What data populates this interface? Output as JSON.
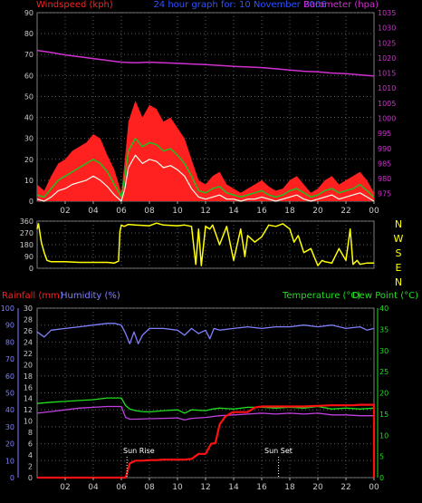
{
  "header": {
    "windspeed_label": "Windspeed (kph)",
    "title": "24 hour graph for: 10 November 2006",
    "barometer_label": "Barometer (hpa)"
  },
  "panel3_header": {
    "rainfall_label": "Rainfall (mm)",
    "humidity_label": "Humidity (%)",
    "temperature_label": "Temperature (°C)",
    "dewpoint_label": "Dew Point (°C)"
  },
  "annotations": {
    "sunrise": "Sun Rise",
    "sunset": "Sun Set"
  },
  "colors": {
    "background": "#000000",
    "grid": "#5a5a5a",
    "windspeed": "#ff2020",
    "barometer": "#d030d0",
    "title": "#3050ff",
    "gust": "#ff2020",
    "avg_wind": "#20c020",
    "min_wind": "#f0fff0",
    "direction": "#ffff00",
    "rainfall": "#ff1010",
    "humidity": "#8080ff",
    "temperature": "#20e020",
    "dewpoint": "#c040e0",
    "tick_text": "#cccccc",
    "temp_axis": "#20e020"
  },
  "chart_data": [
    {
      "type": "line",
      "title": "24 hour graph for: 10 November 2006",
      "x_ticks": [
        "02",
        "04",
        "06",
        "08",
        "10",
        "12",
        "14",
        "16",
        "18",
        "20",
        "22",
        "00"
      ],
      "xlim": [
        0,
        24
      ],
      "y_left": {
        "label": "Windspeed (kph)",
        "ylim": [
          0,
          90
        ],
        "ticks": [
          0,
          10,
          20,
          30,
          40,
          50,
          60,
          70,
          80,
          90
        ]
      },
      "y_right": {
        "label": "Barometer (hpa)",
        "ylim": [
          972.5,
          1035
        ],
        "ticks": [
          975,
          980,
          985,
          990,
          995,
          1000,
          1005,
          1010,
          1015,
          1020,
          1025,
          1030,
          1035
        ]
      },
      "grid": true,
      "series": [
        {
          "axis": "left",
          "x": [
            0,
            0.5,
            1,
            1.5,
            2,
            2.5,
            3,
            3.5,
            4,
            4.5,
            5,
            5.5,
            6,
            6.25,
            6.5,
            7,
            7.5,
            8,
            8.5,
            9,
            9.5,
            10,
            10.5,
            11,
            11.5,
            12,
            12.5,
            13,
            13.5,
            14,
            14.5,
            15,
            15.5,
            16,
            16.5,
            17,
            17.5,
            18,
            18.5,
            19,
            19.5,
            20,
            20.5,
            21,
            21.5,
            22,
            22.5,
            23,
            23.5,
            24
          ],
          "values": [
            8,
            5,
            12,
            18,
            20,
            24,
            26,
            28,
            32,
            30,
            22,
            15,
            4,
            20,
            38,
            48,
            40,
            46,
            44,
            38,
            40,
            35,
            30,
            20,
            10,
            8,
            12,
            14,
            8,
            6,
            4,
            6,
            8,
            10,
            7,
            5,
            6,
            10,
            12,
            8,
            4,
            6,
            10,
            12,
            8,
            10,
            12,
            14,
            10,
            4
          ]
        },
        {
          "axis": "left",
          "x": [
            0,
            0.5,
            1,
            1.5,
            2,
            2.5,
            3,
            3.5,
            4,
            4.5,
            5,
            5.5,
            6,
            6.25,
            6.5,
            7,
            7.5,
            8,
            8.5,
            9,
            9.5,
            10,
            10.5,
            11,
            11.5,
            12,
            12.5,
            13,
            13.5,
            14,
            14.5,
            15,
            15.5,
            16,
            16.5,
            17,
            17.5,
            18,
            18.5,
            19,
            19.5,
            20,
            20.5,
            21,
            21.5,
            22,
            22.5,
            23,
            23.5,
            24
          ],
          "values": [
            3,
            2,
            6,
            10,
            12,
            14,
            16,
            18,
            20,
            18,
            14,
            8,
            2,
            12,
            24,
            30,
            26,
            28,
            27,
            24,
            25,
            22,
            18,
            12,
            5,
            4,
            6,
            7,
            4,
            3,
            2,
            3,
            4,
            5,
            3,
            2,
            3,
            5,
            6,
            4,
            2,
            3,
            5,
            6,
            4,
            5,
            6,
            8,
            5,
            2
          ]
        },
        {
          "axis": "left",
          "x": [
            0,
            0.5,
            1,
            1.5,
            2,
            2.5,
            3,
            3.5,
            4,
            4.5,
            5,
            5.5,
            6,
            6.25,
            6.5,
            7,
            7.5,
            8,
            8.5,
            9,
            9.5,
            10,
            10.5,
            11,
            11.5,
            12,
            12.5,
            13,
            13.5,
            14,
            14.5,
            15,
            15.5,
            16,
            16.5,
            17,
            17.5,
            18,
            18.5,
            19,
            19.5,
            20,
            20.5,
            21,
            21.5,
            22,
            22.5,
            23,
            23.5,
            24
          ],
          "values": [
            1,
            0,
            2,
            5,
            6,
            8,
            9,
            10,
            12,
            10,
            7,
            3,
            0,
            6,
            16,
            22,
            18,
            20,
            19,
            16,
            17,
            15,
            12,
            6,
            2,
            1,
            2,
            3,
            1,
            1,
            0,
            1,
            1,
            2,
            1,
            0,
            1,
            2,
            3,
            1,
            0,
            1,
            2,
            3,
            1,
            2,
            3,
            4,
            2,
            0
          ]
        },
        {
          "axis": "right",
          "x": [
            0,
            1,
            2,
            3,
            4,
            5,
            6,
            7,
            8,
            9,
            10,
            11,
            12,
            13,
            14,
            15,
            16,
            17,
            18,
            19,
            20,
            21,
            22,
            23,
            24
          ],
          "values": [
            1022.5,
            1021.8,
            1021.0,
            1020.4,
            1019.8,
            1019.2,
            1018.6,
            1018.4,
            1018.6,
            1018.4,
            1018.2,
            1018.0,
            1017.8,
            1017.5,
            1017.2,
            1017.0,
            1016.8,
            1016.4,
            1016.0,
            1015.6,
            1015.4,
            1015.0,
            1014.8,
            1014.4,
            1014.0
          ]
        }
      ]
    },
    {
      "type": "line",
      "y_ticks": [
        0,
        90,
        180,
        270,
        360
      ],
      "ylim": [
        0,
        360
      ],
      "direction_labels": [
        "N",
        "W",
        "S",
        "E",
        "N"
      ],
      "grid": true,
      "series": [
        {
          "x": [
            0,
            0.1,
            0.3,
            0.5,
            0.7,
            1,
            2,
            3,
            4,
            5,
            5.5,
            5.8,
            5.9,
            6,
            6.2,
            6.5,
            7,
            8,
            8.5,
            9,
            10,
            10.5,
            11,
            11.3,
            11.5,
            11.7,
            12,
            12.3,
            12.5,
            13,
            13.5,
            14,
            14.5,
            14.8,
            15,
            15.5,
            16,
            16.5,
            17,
            17.5,
            18,
            18.3,
            18.6,
            19,
            19.5,
            20,
            20.3,
            20.5,
            21,
            21.5,
            22,
            22.3,
            22.5,
            22.8,
            23,
            23.5,
            24
          ],
          "values": [
            300,
            340,
            200,
            120,
            60,
            50,
            50,
            45,
            45,
            45,
            40,
            55,
            280,
            330,
            320,
            335,
            330,
            325,
            345,
            330,
            325,
            330,
            320,
            30,
            300,
            20,
            320,
            300,
            330,
            180,
            320,
            60,
            300,
            90,
            250,
            200,
            240,
            330,
            320,
            340,
            300,
            200,
            250,
            120,
            150,
            20,
            60,
            50,
            40,
            150,
            60,
            300,
            30,
            60,
            30,
            40,
            40
          ]
        }
      ]
    },
    {
      "type": "line",
      "y_rainfall": {
        "label": "Rainfall (mm)",
        "ylim": [
          0,
          30
        ],
        "ticks": [
          0,
          2,
          4,
          6,
          8,
          10,
          12,
          14,
          16,
          18,
          20,
          22,
          24,
          26,
          28,
          30
        ]
      },
      "y_humidity": {
        "label": "Humidity (%)",
        "ylim": [
          0,
          100
        ],
        "ticks": [
          0,
          10,
          20,
          30,
          40,
          50,
          60,
          70,
          80,
          90,
          100
        ]
      },
      "y_temp": {
        "label": "Temperature (°C)",
        "ylim": [
          0,
          40
        ],
        "ticks": [
          0,
          5,
          10,
          15,
          20,
          25,
          30,
          35,
          40
        ]
      },
      "grid": true,
      "series": [
        {
          "name": "Humidity (%)",
          "axis": "humidity",
          "x": [
            0,
            0.5,
            1,
            2,
            3,
            4,
            5,
            5.5,
            6,
            6.3,
            6.6,
            6.9,
            7.2,
            7.5,
            8,
            9,
            10,
            10.5,
            11,
            11.5,
            12,
            12.3,
            12.6,
            13,
            14,
            15,
            16,
            17,
            18,
            19,
            20,
            21,
            22,
            23,
            23.5,
            24
          ],
          "values": [
            86,
            83,
            87,
            88,
            89,
            90,
            91,
            91,
            90,
            85,
            79,
            86,
            79,
            84,
            88,
            88,
            87,
            84,
            88,
            85,
            87,
            82,
            88,
            87,
            88,
            89,
            88,
            89,
            89,
            90,
            89,
            90,
            88,
            89,
            87,
            88
          ]
        },
        {
          "name": "Temperature (°C)",
          "axis": "temp",
          "x": [
            0,
            1,
            2,
            3,
            4,
            5,
            6,
            6.3,
            6.6,
            7,
            7.5,
            8,
            9,
            10,
            10.5,
            11,
            12,
            12.5,
            13,
            14,
            15,
            16,
            17,
            18,
            19,
            20,
            21,
            22,
            23,
            24
          ],
          "values": [
            17.5,
            17.8,
            18.0,
            18.2,
            18.4,
            18.8,
            18.8,
            17.0,
            16.2,
            15.8,
            15.6,
            15.5,
            15.8,
            16.0,
            15.2,
            16.0,
            15.8,
            16.2,
            16.4,
            16.2,
            16.6,
            16.6,
            16.4,
            16.6,
            16.4,
            16.8,
            16.2,
            16.4,
            16.2,
            16.4
          ]
        },
        {
          "name": "Dew Point (°C)",
          "axis": "temp",
          "x": [
            0,
            1,
            2,
            3,
            4,
            5,
            6,
            6.3,
            6.6,
            7,
            8,
            9,
            10,
            10.5,
            11,
            12,
            13,
            14,
            15,
            16,
            17,
            18,
            19,
            20,
            21,
            22,
            23,
            24
          ],
          "values": [
            15.2,
            15.6,
            16.0,
            16.4,
            16.6,
            16.8,
            16.8,
            14.2,
            13.8,
            13.8,
            13.9,
            14.0,
            14.1,
            13.6,
            14.0,
            14.2,
            14.6,
            14.8,
            15.0,
            15.2,
            15.0,
            15.2,
            15.0,
            15.2,
            14.8,
            14.8,
            14.6,
            14.6
          ]
        },
        {
          "name": "Rainfall (mm)",
          "axis": "rainfall",
          "x": [
            0,
            6,
            6.3,
            6.6,
            7,
            7.5,
            8,
            8.5,
            9,
            9.5,
            10,
            10.5,
            11,
            11.5,
            12,
            12.4,
            12.7,
            13,
            13.4,
            13.8,
            14,
            14.5,
            15,
            15.5,
            16,
            16.5,
            17,
            18,
            19,
            20,
            21,
            22,
            22.5,
            23,
            23.8,
            24,
            24
          ],
          "values": [
            0,
            0,
            0,
            2.5,
            3.0,
            3.0,
            3.1,
            3.1,
            3.2,
            3.2,
            3.2,
            3.2,
            3.3,
            4.2,
            4.2,
            6.0,
            6.1,
            9.4,
            10.8,
            11.4,
            11.6,
            11.6,
            11.6,
            12.4,
            12.6,
            12.6,
            12.6,
            12.6,
            12.6,
            12.7,
            12.8,
            12.8,
            12.8,
            12.9,
            12.9,
            12.9,
            0
          ]
        }
      ]
    }
  ],
  "x_axis_labels": [
    "02",
    "04",
    "06",
    "08",
    "10",
    "12",
    "14",
    "16",
    "18",
    "20",
    "22",
    "00"
  ]
}
